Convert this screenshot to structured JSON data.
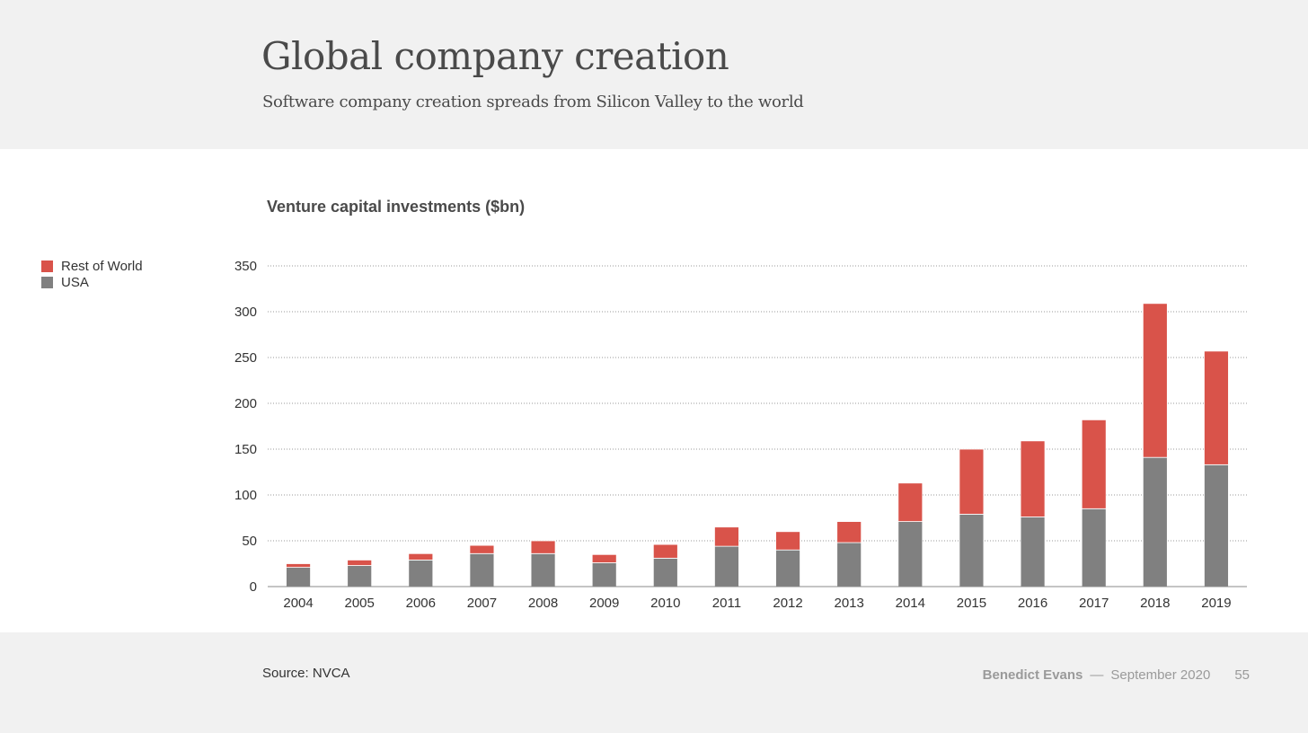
{
  "header": {
    "title": "Global company creation",
    "subtitle": "Software company creation spreads from Silicon Valley to the world"
  },
  "footer": {
    "source": "Source: NVCA",
    "author": "Benedict Evans",
    "separator": "—",
    "date": "September 2020",
    "page_number": "55"
  },
  "chart_data": {
    "type": "bar",
    "stacked": true,
    "title": "Venture capital investments ($bn)",
    "xlabel": "",
    "ylabel": "",
    "ylim": [
      0,
      350
    ],
    "yticks": [
      0,
      50,
      100,
      150,
      200,
      250,
      300,
      350
    ],
    "grid": true,
    "legend_position": "top-left",
    "categories": [
      "2004",
      "2005",
      "2006",
      "2007",
      "2008",
      "2009",
      "2010",
      "2011",
      "2012",
      "2013",
      "2014",
      "2015",
      "2016",
      "2017",
      "2018",
      "2019"
    ],
    "series": [
      {
        "name": "USA",
        "color": "#808080",
        "values": [
          21,
          23,
          29,
          36,
          36,
          26,
          31,
          44,
          40,
          48,
          71,
          79,
          76,
          85,
          141,
          133
        ]
      },
      {
        "name": "Rest of World",
        "color": "#d9534a",
        "values": [
          4,
          6,
          7,
          9,
          14,
          9,
          15,
          21,
          20,
          23,
          42,
          71,
          83,
          97,
          168,
          124
        ]
      }
    ],
    "legend": [
      {
        "name": "Rest of World",
        "color": "#d9534a"
      },
      {
        "name": "USA",
        "color": "#808080"
      }
    ]
  }
}
